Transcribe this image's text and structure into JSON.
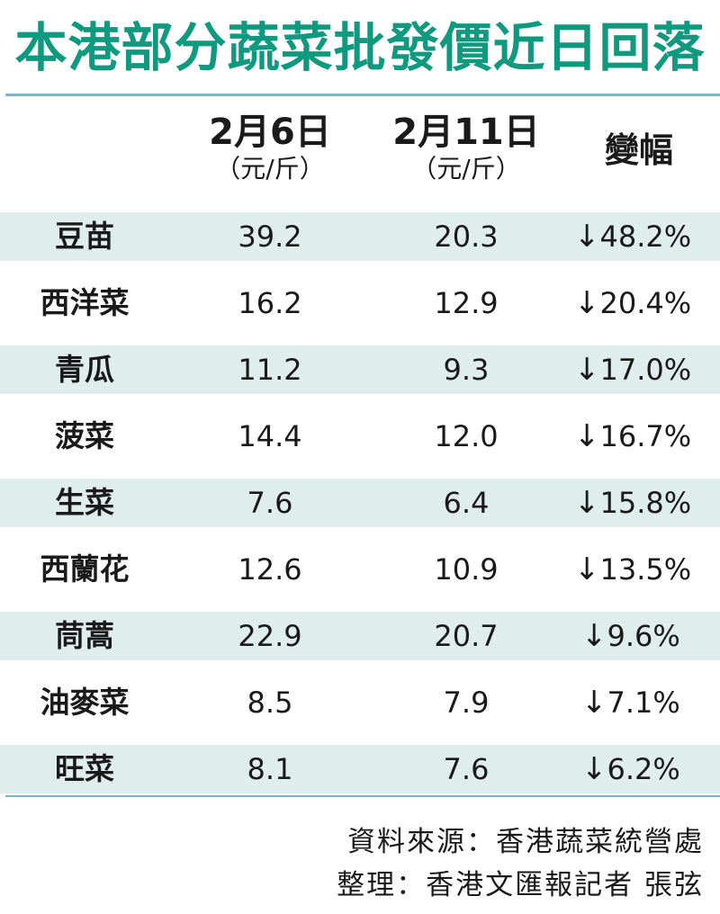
{
  "title": "本港部分蔬菜批發價近日回落",
  "columns": {
    "date1": "2月6日",
    "date1_unit": "（元/斤）",
    "date2": "2月11日",
    "date2_unit": "（元/斤）",
    "change": "變幅"
  },
  "rows": [
    {
      "name": "豆苗",
      "price_feb6": "39.2",
      "price_feb11": "20.3",
      "arrow": "↓",
      "change": "48.2%"
    },
    {
      "name": "西洋菜",
      "price_feb6": "16.2",
      "price_feb11": "12.9",
      "arrow": "↓",
      "change": "20.4%"
    },
    {
      "name": "青瓜",
      "price_feb6": "11.2",
      "price_feb11": "9.3",
      "arrow": "↓",
      "change": "17.0%"
    },
    {
      "name": "菠菜",
      "price_feb6": "14.4",
      "price_feb11": "12.0",
      "arrow": "↓",
      "change": "16.7%"
    },
    {
      "name": "生菜",
      "price_feb6": "7.6",
      "price_feb11": "6.4",
      "arrow": "↓",
      "change": "15.8%"
    },
    {
      "name": "西蘭花",
      "price_feb6": "12.6",
      "price_feb11": "10.9",
      "arrow": "↓",
      "change": "13.5%"
    },
    {
      "name": "茼蒿",
      "price_feb6": "22.9",
      "price_feb11": "20.7",
      "arrow": "↓",
      "change": "9.6%"
    },
    {
      "name": "油麥菜",
      "price_feb6": "8.5",
      "price_feb11": "7.9",
      "arrow": "↓",
      "change": "7.1%"
    },
    {
      "name": "旺菜",
      "price_feb6": "8.1",
      "price_feb11": "7.6",
      "arrow": "↓",
      "change": "6.2%"
    }
  ],
  "footer": {
    "source": "資料來源：香港蔬菜統營處",
    "credit": "整理：香港文匯報記者 張弦"
  },
  "colors": {
    "title": "#0f9a80",
    "row_shade": "#dfeeec",
    "rule": "#7fb4c8"
  }
}
